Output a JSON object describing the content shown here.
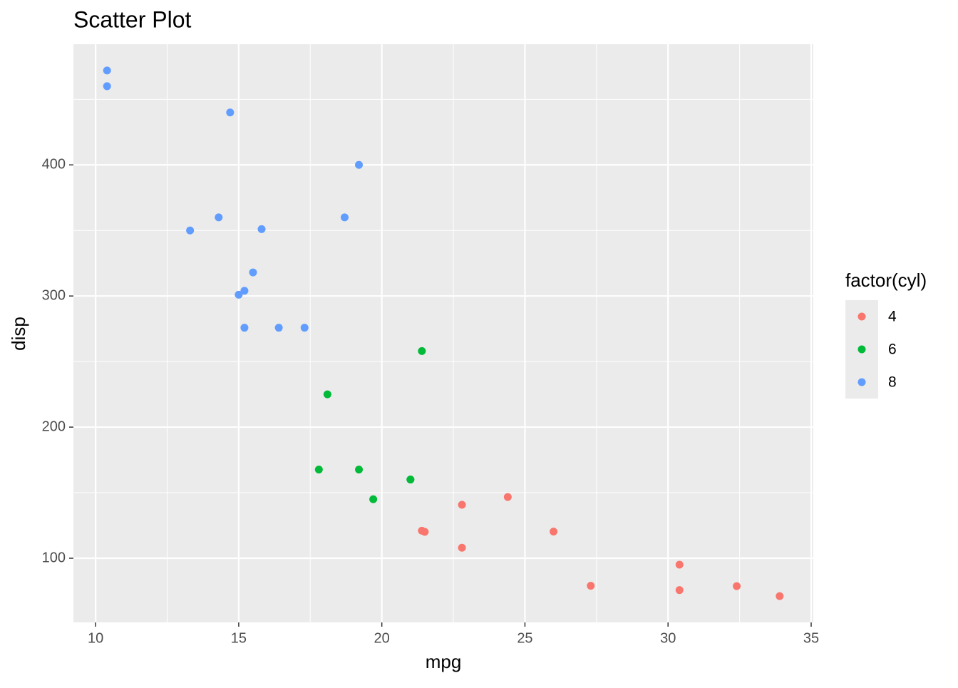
{
  "chart_data": {
    "type": "scatter",
    "title": "Scatter Plot",
    "x_label": "mpg",
    "y_label": "disp",
    "legend_title": "factor(cyl)",
    "legend_position": "right",
    "grid": true,
    "xlim": [
      9.225,
      35.075
    ],
    "xticks": [
      10,
      15,
      20,
      25,
      30,
      35
    ],
    "ylim": [
      51.055,
      492.045
    ],
    "yticks": [
      100,
      200,
      300,
      400
    ],
    "series": [
      {
        "name": "4",
        "color": "#F8766D",
        "x": [
          22.8,
          24.4,
          22.8,
          32.4,
          30.4,
          33.9,
          21.5,
          27.3,
          26,
          30.4,
          21.4
        ],
        "values": [
          108,
          146.7,
          140.8,
          78.7,
          75.7,
          71.1,
          120.1,
          79,
          120.3,
          95.1,
          121
        ]
      },
      {
        "name": "6",
        "color": "#00BA38",
        "x": [
          21,
          21,
          21.4,
          18.1,
          19.2,
          17.8,
          19.7
        ],
        "values": [
          160,
          160,
          258,
          225,
          167.6,
          167.6,
          145
        ]
      },
      {
        "name": "8",
        "color": "#619CFF",
        "x": [
          18.7,
          14.3,
          16.4,
          17.3,
          15.2,
          10.4,
          10.4,
          14.7,
          15.5,
          15.2,
          13.3,
          19.2,
          15.8,
          15
        ],
        "values": [
          360,
          360,
          275.8,
          275.8,
          275.8,
          472,
          460,
          440,
          318,
          304,
          350,
          400,
          351,
          301
        ]
      }
    ]
  }
}
